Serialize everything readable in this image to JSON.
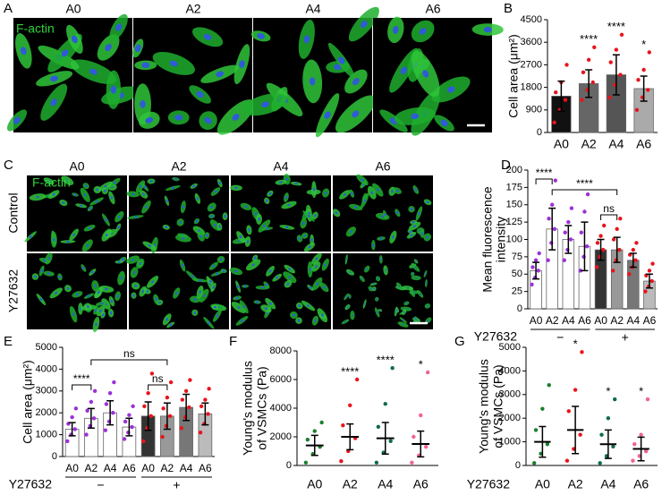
{
  "panel_letters": [
    "A",
    "B",
    "C",
    "D",
    "E",
    "F",
    "G"
  ],
  "images": {
    "A": {
      "columns": [
        "A0",
        "A2",
        "A4",
        "A6"
      ],
      "stain": "F-actin"
    },
    "C": {
      "columns": [
        "A0",
        "A2",
        "A4",
        "A6"
      ],
      "rows": [
        "Control",
        "Y27632"
      ],
      "stain": "F-actin"
    }
  },
  "chart_data": [
    {
      "type": "bar",
      "ylabel": [
        "Cell area (μm²)"
      ],
      "categories": [
        "A0",
        "A2",
        "A4",
        "A6"
      ],
      "values": [
        1450,
        1950,
        2300,
        1750
      ],
      "errors": [
        600,
        550,
        800,
        500
      ],
      "points": [
        [
          400,
          900,
          1300,
          1600,
          2000,
          2700
        ],
        [
          1300,
          1700,
          2000,
          2400,
          2900,
          3400
        ],
        [
          1400,
          1900,
          2300,
          2800,
          3300,
          3900
        ],
        [
          900,
          1400,
          1700,
          2100,
          2500,
          3200
        ]
      ],
      "bar_colors": [
        "#111111",
        "#666666",
        "#555555",
        "#aaaaaa"
      ],
      "dot_colors": [
        "#e8141c",
        "#e8141c",
        "#e8141c",
        "#e8141c"
      ],
      "significance": [
        null,
        "****",
        "****",
        "*"
      ],
      "ylim": [
        0,
        4500
      ],
      "yticks": [
        0,
        900,
        1800,
        2700,
        3600,
        4500
      ]
    },
    {
      "type": "bar",
      "ylabel": [
        "Mean fluorescence",
        "intensity"
      ],
      "categories": [
        "A0",
        "A2",
        "A4",
        "A6",
        "A0",
        "A2",
        "A4",
        "A6"
      ],
      "values": [
        55,
        115,
        100,
        90,
        85,
        85,
        70,
        40
      ],
      "errors": [
        12,
        30,
        20,
        35,
        15,
        18,
        10,
        10
      ],
      "points": [
        [
          35,
          45,
          55,
          60,
          70,
          80
        ],
        [
          70,
          95,
          115,
          130,
          150,
          185
        ],
        [
          70,
          85,
          100,
          110,
          125,
          145
        ],
        [
          55,
          75,
          90,
          110,
          140,
          165
        ],
        [
          60,
          75,
          85,
          95,
          105,
          120
        ],
        [
          55,
          70,
          85,
          100,
          115,
          130
        ],
        [
          50,
          60,
          70,
          78,
          85,
          95
        ],
        [
          25,
          32,
          40,
          48,
          55,
          65
        ]
      ],
      "bar_colors": [
        "#ffffff",
        "#ffffff",
        "#ffffff",
        "#ffffff",
        "#333333",
        "#999999",
        "#777777",
        "#bbbbbb"
      ],
      "dot_colors": [
        "#9b30d9",
        "#9b30d9",
        "#9b30d9",
        "#9b30d9",
        "#e8141c",
        "#e8141c",
        "#e8141c",
        "#e8141c"
      ],
      "brackets": [
        {
          "from": 0,
          "to": 1,
          "label": "****"
        },
        {
          "from": 1,
          "to": 5,
          "label": "****"
        },
        {
          "from": 4,
          "to": 5,
          "label": "ns"
        }
      ],
      "group_label": "Y27632",
      "groups": [
        "−",
        "+"
      ],
      "ylim": [
        0,
        200
      ],
      "yticks": [
        0,
        25,
        50,
        75,
        100,
        125,
        150,
        175,
        200
      ]
    },
    {
      "type": "bar",
      "ylabel": [
        "Cell area (μm²)"
      ],
      "categories": [
        "A0",
        "A2",
        "A4",
        "A6",
        "A0",
        "A2",
        "A4",
        "A6"
      ],
      "values": [
        1250,
        1750,
        2000,
        1350,
        1850,
        1850,
        2250,
        1950
      ],
      "errors": [
        300,
        450,
        550,
        400,
        650,
        600,
        600,
        500
      ],
      "points": [
        [
          700,
          1000,
          1250,
          1500,
          1800,
          2200
        ],
        [
          1000,
          1400,
          1750,
          2100,
          2500,
          3000
        ],
        [
          1200,
          1600,
          2000,
          2400,
          2900,
          3400
        ],
        [
          800,
          1100,
          1350,
          1600,
          1900,
          2300
        ],
        [
          700,
          1300,
          1850,
          2300,
          2900,
          3800
        ],
        [
          900,
          1400,
          1850,
          2200,
          2700,
          3400
        ],
        [
          1300,
          1800,
          2250,
          2600,
          3000,
          3500
        ],
        [
          1100,
          1500,
          1950,
          2300,
          2600,
          3100
        ]
      ],
      "bar_colors": [
        "#ffffff",
        "#ffffff",
        "#ffffff",
        "#ffffff",
        "#333333",
        "#999999",
        "#777777",
        "#bbbbbb"
      ],
      "dot_colors": [
        "#9b30d9",
        "#9b30d9",
        "#9b30d9",
        "#9b30d9",
        "#e8141c",
        "#e8141c",
        "#e8141c",
        "#e8141c"
      ],
      "brackets": [
        {
          "from": 0,
          "to": 1,
          "label": "****"
        },
        {
          "from": 1,
          "to": 5,
          "label": "ns"
        },
        {
          "from": 4,
          "to": 5,
          "label": "ns"
        }
      ],
      "group_label": "Y27632",
      "groups": [
        "−",
        "+"
      ],
      "ylim": [
        0,
        5000
      ],
      "yticks": [
        0,
        1000,
        2000,
        3000,
        4000,
        5000
      ]
    },
    {
      "type": "dotplot",
      "ylabel": [
        "Young's modulus",
        "of VSMCs (Pa)"
      ],
      "categories": [
        "A0",
        "A2",
        "A4",
        "A6"
      ],
      "values": [
        1400,
        2000,
        1900,
        1500
      ],
      "errors": [
        700,
        900,
        1100,
        900
      ],
      "points": [
        [
          200,
          800,
          1300,
          1800,
          2400,
          3000
        ],
        [
          300,
          1000,
          1900,
          2800,
          4200,
          6000
        ],
        [
          200,
          900,
          1700,
          2700,
          4300,
          6800
        ],
        [
          200,
          700,
          1300,
          2000,
          3500,
          6500
        ]
      ],
      "dot_colors": [
        "#1a7f2e",
        "#e8141c",
        "#0f6b4a",
        "#f06292"
      ],
      "significance": [
        null,
        "****",
        "****",
        "*"
      ],
      "ylim": [
        0,
        8000
      ],
      "yticks": [
        0,
        2000,
        4000,
        6000,
        8000
      ]
    },
    {
      "type": "dotplot",
      "ylabel": [
        "Young's modulus",
        "of VSMCs (Pa)"
      ],
      "categories": [
        "A0",
        "A2",
        "A4",
        "A6"
      ],
      "values": [
        1000,
        1500,
        900,
        700
      ],
      "errors": [
        650,
        1000,
        600,
        500
      ],
      "points": [
        [
          100,
          500,
          900,
          1500,
          2400,
          3400
        ],
        [
          200,
          700,
          1300,
          2300,
          3200,
          4800
        ],
        [
          100,
          400,
          800,
          1300,
          2000,
          2800
        ],
        [
          200,
          400,
          600,
          900,
          1300,
          2800
        ]
      ],
      "dot_colors": [
        "#1a7f2e",
        "#e8141c",
        "#0f6b4a",
        "#f06292"
      ],
      "significance": [
        null,
        "*",
        "*",
        "*"
      ],
      "group_label": "Y27632",
      "ylim": [
        0,
        5000
      ],
      "yticks": [
        0,
        1000,
        2000,
        3000,
        4000,
        5000
      ]
    }
  ]
}
